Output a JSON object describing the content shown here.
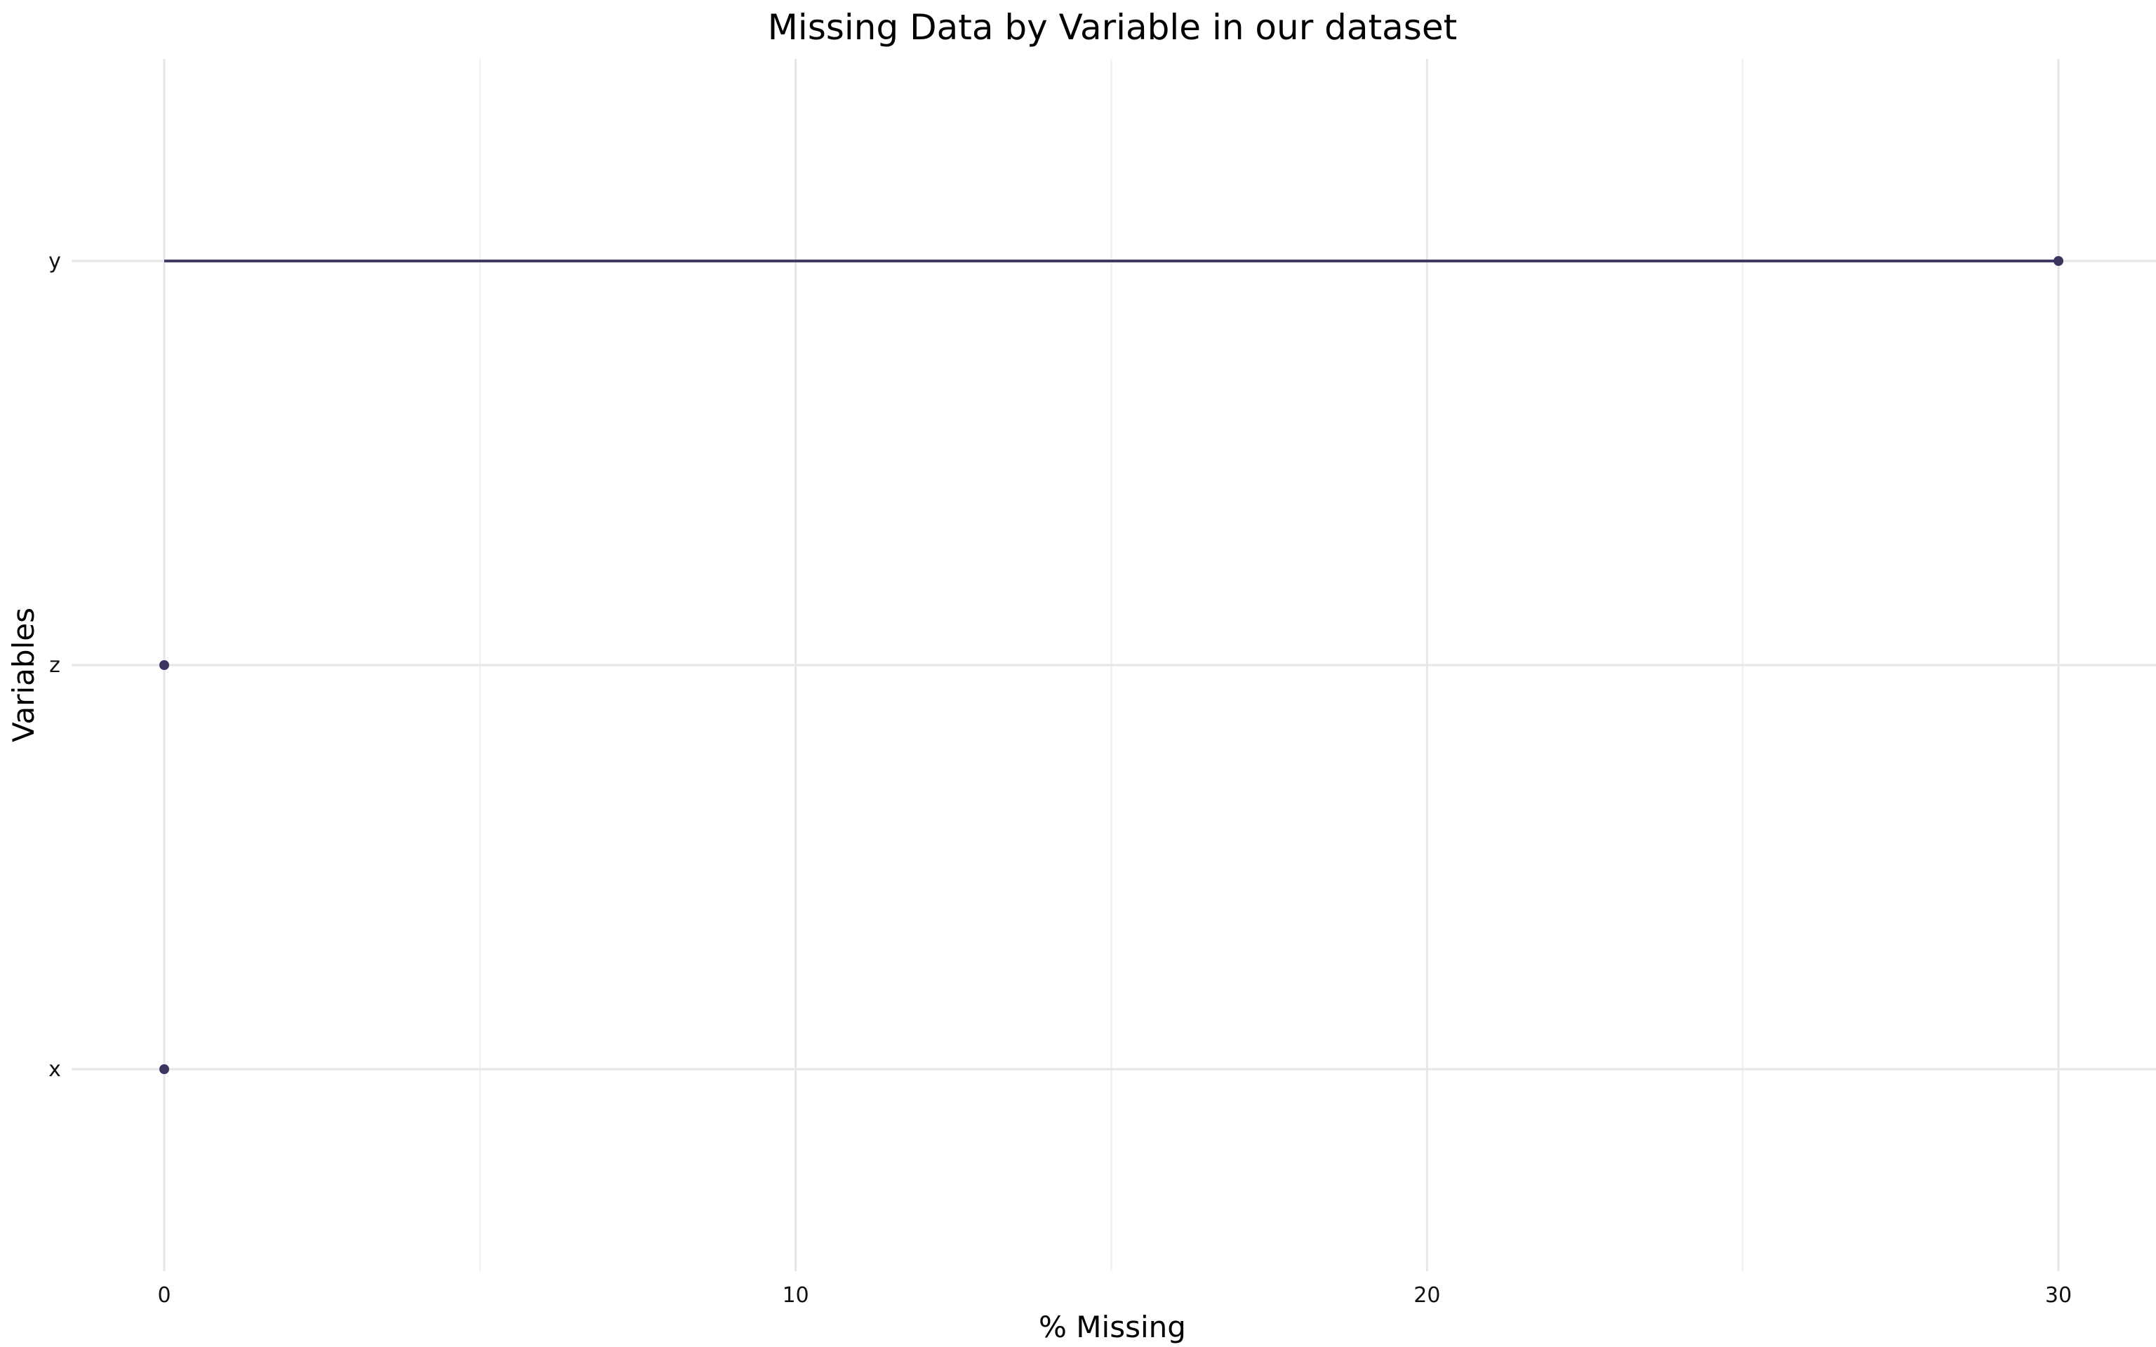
{
  "chart_data": {
    "type": "lollipop",
    "title": "Missing Data by Variable in our dataset",
    "xlabel": "% Missing",
    "ylabel": "Variables",
    "categories": [
      "x",
      "z",
      "y"
    ],
    "values": [
      0,
      0,
      30
    ],
    "xlim": [
      -0.7,
      31.5
    ],
    "x_major_ticks": [
      0,
      10,
      20,
      30
    ],
    "x_minor_ticks": [
      5,
      15,
      25
    ],
    "grid": true,
    "legend": "none",
    "colors": {
      "segment": "#3f3b63",
      "point": "#3b3660",
      "grid": "#e6e6e6",
      "background": "#ffffff"
    }
  }
}
